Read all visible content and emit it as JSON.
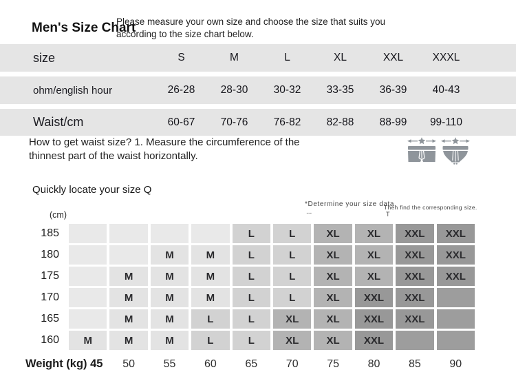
{
  "header": {
    "title": "Men's Size Chart",
    "intro_line1": "Please measure your own size and choose the size that suits you",
    "intro_line2": "according to the size chart below."
  },
  "size_table": {
    "rows": [
      {
        "label": "size",
        "emphasis": true,
        "values": [
          "S",
          "M",
          "L",
          "XL",
          "XXL",
          "XXXL"
        ]
      },
      {
        "label": "ohm/english hour",
        "emphasis": false,
        "values": [
          "26-28",
          "28-30",
          "30-32",
          "33-35",
          "36-39",
          "40-43"
        ]
      },
      {
        "label": "Waist/cm",
        "emphasis": true,
        "values": [
          "60-67",
          "70-76",
          "76-82",
          "82-88",
          "88-99",
          "99-110"
        ]
      }
    ]
  },
  "howto": {
    "line1": "How to get waist size? 1. Measure the circumference of the",
    "line2": "thinnest part of the waist horizontally.",
    "icon_color": "#8f959b",
    "icons": [
      "boxer-brief-icon",
      "brief-icon"
    ]
  },
  "locator": {
    "heading": "Quickly locate your size Q",
    "note1": "*Determine your size data,",
    "note1b": "...",
    "note2": "Then find the corresponding size.",
    "note2b": "T",
    "y_unit": "(cm)",
    "x_axis_label": "Weight (kg) 45",
    "x_ticks": [
      "50",
      "55",
      "60",
      "65",
      "70",
      "75",
      "80",
      "85",
      "90"
    ],
    "rows": [
      {
        "height": "185",
        "cells": [
          "",
          "",
          "",
          "",
          "L",
          "L",
          "XL",
          "XL",
          "XXL",
          "XXL"
        ]
      },
      {
        "height": "180",
        "cells": [
          "",
          "",
          "M",
          "M",
          "L",
          "L",
          "XL",
          "XL",
          "XXL",
          "XXL"
        ]
      },
      {
        "height": "175",
        "cells": [
          "",
          "M",
          "M",
          "M",
          "L",
          "L",
          "XL",
          "XL",
          "XXL",
          "XXL"
        ]
      },
      {
        "height": "170",
        "cells": [
          "",
          "M",
          "M",
          "M",
          "L",
          "L",
          "XL",
          "XXL",
          "XXL",
          "#dark"
        ]
      },
      {
        "height": "165",
        "cells": [
          "",
          "M",
          "M",
          "L",
          "L",
          "XL",
          "XL",
          "XXL",
          "XXL",
          "#dark"
        ]
      },
      {
        "height": "160",
        "cells": [
          "M",
          "M",
          "M",
          "L",
          "L",
          "XL",
          "XL",
          "XXL",
          "#dark",
          "#dark"
        ]
      }
    ],
    "cell_colors": {
      "": "#e9e9e9",
      "M": "#e3e3e3",
      "L": "#d2d2d2",
      "XL": "#b3b3b3",
      "XXL": "#989898",
      "#dark": "#9d9d9d"
    },
    "row_bg": "#e5e5e5"
  }
}
